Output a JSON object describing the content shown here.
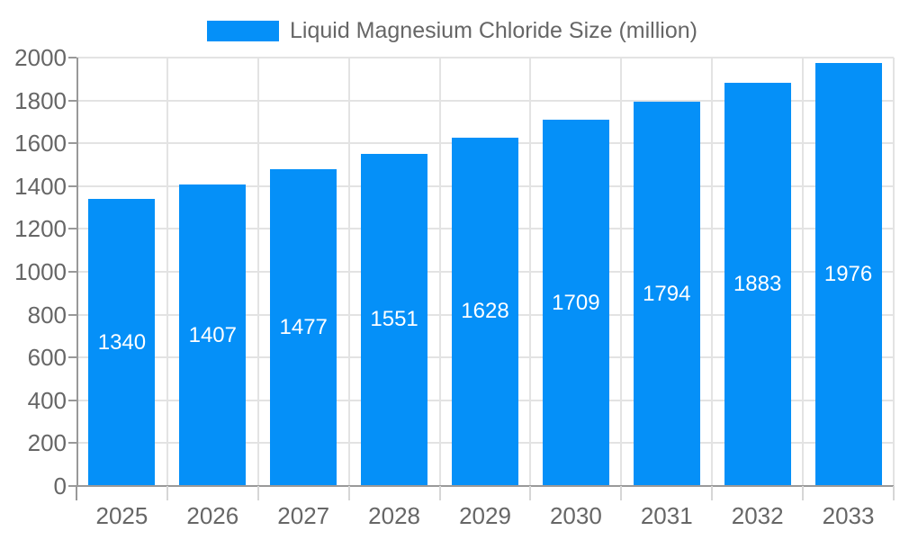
{
  "page": {
    "background_color": "#ffffff"
  },
  "legend": {
    "swatch_color": "#0590f8",
    "text_color": "#666666"
  },
  "chart_data": {
    "type": "bar",
    "legend": "Liquid Magnesium Chloride Size (million)",
    "legend_position": "top",
    "categories": [
      "2025",
      "2026",
      "2027",
      "2028",
      "2029",
      "2030",
      "2031",
      "2032",
      "2033"
    ],
    "values": [
      1340,
      1407,
      1477,
      1551,
      1628,
      1709,
      1794,
      1883,
      1976
    ],
    "value_labels": [
      "1340",
      "1407",
      "1477",
      "1551",
      "1628",
      "1709",
      "1794",
      "1883",
      "1976"
    ],
    "yticks": [
      "0",
      "200",
      "400",
      "600",
      "800",
      "1000",
      "1200",
      "1400",
      "1600",
      "1800",
      "2000"
    ],
    "ylim": [
      0,
      2000
    ],
    "ytick_step": 200,
    "grid": true,
    "xlabel": "",
    "ylabel": "",
    "title": "",
    "bar_color": "#0590f8",
    "value_label_color": "#ffffff",
    "axis_text_color": "#666666",
    "axis_line_color": "#999999",
    "grid_color": "#e3e3e3",
    "minor_tick_color": "#d6d6d6"
  }
}
